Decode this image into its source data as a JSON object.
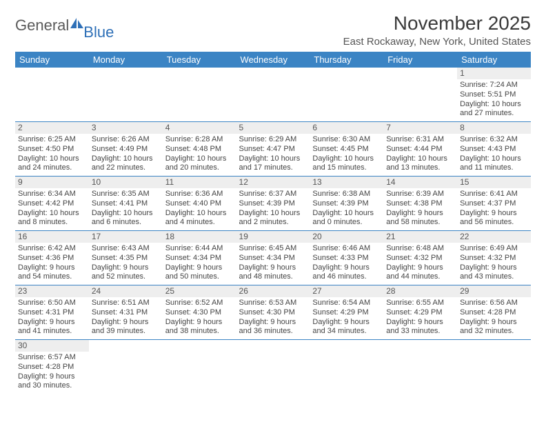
{
  "logo": {
    "part1": "General",
    "part2": "Blue"
  },
  "header": {
    "month_title": "November 2025",
    "location": "East Rockaway, New York, United States"
  },
  "colors": {
    "header_bg": "#3b84c4",
    "header_text": "#ffffff",
    "daynum_bg": "#eeeeee",
    "border": "#3b84c4",
    "logo_accent": "#2d6fb7"
  },
  "weekdays": [
    "Sunday",
    "Monday",
    "Tuesday",
    "Wednesday",
    "Thursday",
    "Friday",
    "Saturday"
  ],
  "weeks": [
    [
      {
        "day": "",
        "sunrise": "",
        "sunset": "",
        "daylight": ""
      },
      {
        "day": "",
        "sunrise": "",
        "sunset": "",
        "daylight": ""
      },
      {
        "day": "",
        "sunrise": "",
        "sunset": "",
        "daylight": ""
      },
      {
        "day": "",
        "sunrise": "",
        "sunset": "",
        "daylight": ""
      },
      {
        "day": "",
        "sunrise": "",
        "sunset": "",
        "daylight": ""
      },
      {
        "day": "",
        "sunrise": "",
        "sunset": "",
        "daylight": ""
      },
      {
        "day": "1",
        "sunrise": "Sunrise: 7:24 AM",
        "sunset": "Sunset: 5:51 PM",
        "daylight": "Daylight: 10 hours and 27 minutes."
      }
    ],
    [
      {
        "day": "2",
        "sunrise": "Sunrise: 6:25 AM",
        "sunset": "Sunset: 4:50 PM",
        "daylight": "Daylight: 10 hours and 24 minutes."
      },
      {
        "day": "3",
        "sunrise": "Sunrise: 6:26 AM",
        "sunset": "Sunset: 4:49 PM",
        "daylight": "Daylight: 10 hours and 22 minutes."
      },
      {
        "day": "4",
        "sunrise": "Sunrise: 6:28 AM",
        "sunset": "Sunset: 4:48 PM",
        "daylight": "Daylight: 10 hours and 20 minutes."
      },
      {
        "day": "5",
        "sunrise": "Sunrise: 6:29 AM",
        "sunset": "Sunset: 4:47 PM",
        "daylight": "Daylight: 10 hours and 17 minutes."
      },
      {
        "day": "6",
        "sunrise": "Sunrise: 6:30 AM",
        "sunset": "Sunset: 4:45 PM",
        "daylight": "Daylight: 10 hours and 15 minutes."
      },
      {
        "day": "7",
        "sunrise": "Sunrise: 6:31 AM",
        "sunset": "Sunset: 4:44 PM",
        "daylight": "Daylight: 10 hours and 13 minutes."
      },
      {
        "day": "8",
        "sunrise": "Sunrise: 6:32 AM",
        "sunset": "Sunset: 4:43 PM",
        "daylight": "Daylight: 10 hours and 11 minutes."
      }
    ],
    [
      {
        "day": "9",
        "sunrise": "Sunrise: 6:34 AM",
        "sunset": "Sunset: 4:42 PM",
        "daylight": "Daylight: 10 hours and 8 minutes."
      },
      {
        "day": "10",
        "sunrise": "Sunrise: 6:35 AM",
        "sunset": "Sunset: 4:41 PM",
        "daylight": "Daylight: 10 hours and 6 minutes."
      },
      {
        "day": "11",
        "sunrise": "Sunrise: 6:36 AM",
        "sunset": "Sunset: 4:40 PM",
        "daylight": "Daylight: 10 hours and 4 minutes."
      },
      {
        "day": "12",
        "sunrise": "Sunrise: 6:37 AM",
        "sunset": "Sunset: 4:39 PM",
        "daylight": "Daylight: 10 hours and 2 minutes."
      },
      {
        "day": "13",
        "sunrise": "Sunrise: 6:38 AM",
        "sunset": "Sunset: 4:39 PM",
        "daylight": "Daylight: 10 hours and 0 minutes."
      },
      {
        "day": "14",
        "sunrise": "Sunrise: 6:39 AM",
        "sunset": "Sunset: 4:38 PM",
        "daylight": "Daylight: 9 hours and 58 minutes."
      },
      {
        "day": "15",
        "sunrise": "Sunrise: 6:41 AM",
        "sunset": "Sunset: 4:37 PM",
        "daylight": "Daylight: 9 hours and 56 minutes."
      }
    ],
    [
      {
        "day": "16",
        "sunrise": "Sunrise: 6:42 AM",
        "sunset": "Sunset: 4:36 PM",
        "daylight": "Daylight: 9 hours and 54 minutes."
      },
      {
        "day": "17",
        "sunrise": "Sunrise: 6:43 AM",
        "sunset": "Sunset: 4:35 PM",
        "daylight": "Daylight: 9 hours and 52 minutes."
      },
      {
        "day": "18",
        "sunrise": "Sunrise: 6:44 AM",
        "sunset": "Sunset: 4:34 PM",
        "daylight": "Daylight: 9 hours and 50 minutes."
      },
      {
        "day": "19",
        "sunrise": "Sunrise: 6:45 AM",
        "sunset": "Sunset: 4:34 PM",
        "daylight": "Daylight: 9 hours and 48 minutes."
      },
      {
        "day": "20",
        "sunrise": "Sunrise: 6:46 AM",
        "sunset": "Sunset: 4:33 PM",
        "daylight": "Daylight: 9 hours and 46 minutes."
      },
      {
        "day": "21",
        "sunrise": "Sunrise: 6:48 AM",
        "sunset": "Sunset: 4:32 PM",
        "daylight": "Daylight: 9 hours and 44 minutes."
      },
      {
        "day": "22",
        "sunrise": "Sunrise: 6:49 AM",
        "sunset": "Sunset: 4:32 PM",
        "daylight": "Daylight: 9 hours and 43 minutes."
      }
    ],
    [
      {
        "day": "23",
        "sunrise": "Sunrise: 6:50 AM",
        "sunset": "Sunset: 4:31 PM",
        "daylight": "Daylight: 9 hours and 41 minutes."
      },
      {
        "day": "24",
        "sunrise": "Sunrise: 6:51 AM",
        "sunset": "Sunset: 4:31 PM",
        "daylight": "Daylight: 9 hours and 39 minutes."
      },
      {
        "day": "25",
        "sunrise": "Sunrise: 6:52 AM",
        "sunset": "Sunset: 4:30 PM",
        "daylight": "Daylight: 9 hours and 38 minutes."
      },
      {
        "day": "26",
        "sunrise": "Sunrise: 6:53 AM",
        "sunset": "Sunset: 4:30 PM",
        "daylight": "Daylight: 9 hours and 36 minutes."
      },
      {
        "day": "27",
        "sunrise": "Sunrise: 6:54 AM",
        "sunset": "Sunset: 4:29 PM",
        "daylight": "Daylight: 9 hours and 34 minutes."
      },
      {
        "day": "28",
        "sunrise": "Sunrise: 6:55 AM",
        "sunset": "Sunset: 4:29 PM",
        "daylight": "Daylight: 9 hours and 33 minutes."
      },
      {
        "day": "29",
        "sunrise": "Sunrise: 6:56 AM",
        "sunset": "Sunset: 4:28 PM",
        "daylight": "Daylight: 9 hours and 32 minutes."
      }
    ],
    [
      {
        "day": "30",
        "sunrise": "Sunrise: 6:57 AM",
        "sunset": "Sunset: 4:28 PM",
        "daylight": "Daylight: 9 hours and 30 minutes."
      },
      {
        "day": "",
        "sunrise": "",
        "sunset": "",
        "daylight": ""
      },
      {
        "day": "",
        "sunrise": "",
        "sunset": "",
        "daylight": ""
      },
      {
        "day": "",
        "sunrise": "",
        "sunset": "",
        "daylight": ""
      },
      {
        "day": "",
        "sunrise": "",
        "sunset": "",
        "daylight": ""
      },
      {
        "day": "",
        "sunrise": "",
        "sunset": "",
        "daylight": ""
      },
      {
        "day": "",
        "sunrise": "",
        "sunset": "",
        "daylight": ""
      }
    ]
  ]
}
